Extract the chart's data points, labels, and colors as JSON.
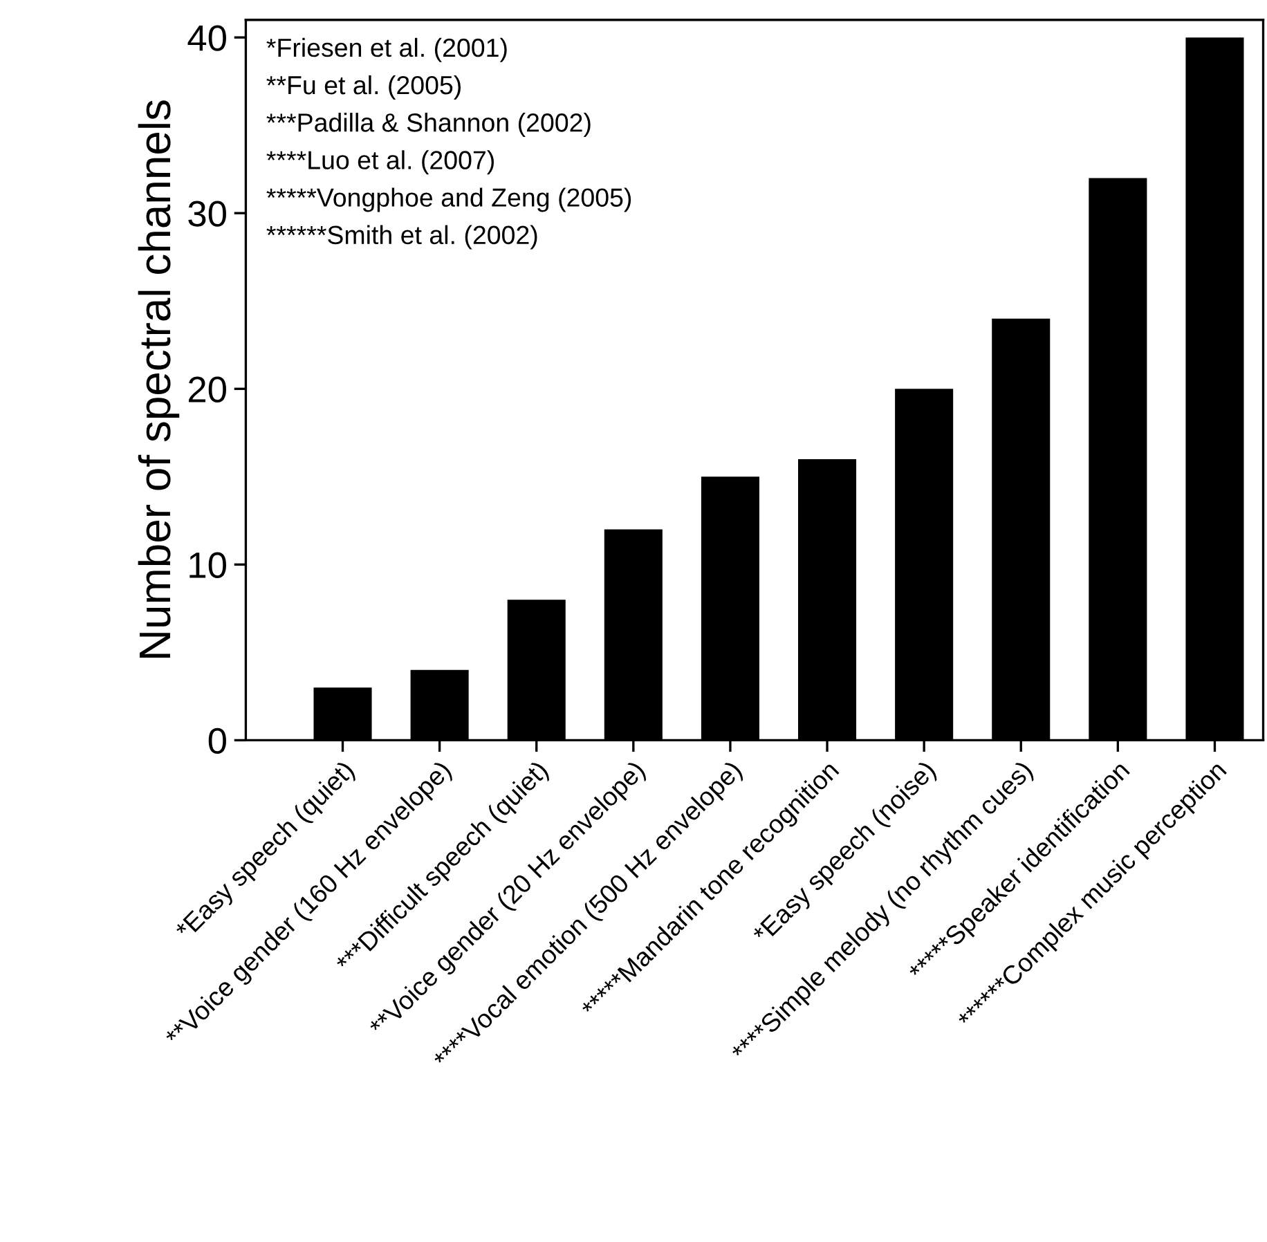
{
  "chart_data": {
    "type": "bar",
    "ylabel": "Number of spectral channels",
    "categories": [
      "*Easy speech (quiet)",
      "**Voice gender (160 Hz envelope)",
      "***Difficult speech (quiet)",
      "**Voice gender (20 Hz envelope)",
      "****Vocal emotion (500 Hz envelope)",
      "*****Mandarin tone recognition",
      "*Easy speech (noise)",
      "****Simple melody (no rhythm cues)",
      "*****Speaker identification",
      "******Complex music perception"
    ],
    "values": [
      3,
      4,
      8,
      12,
      15,
      16,
      20,
      24,
      32,
      40
    ],
    "color": "#000000",
    "ylim": [
      0,
      41
    ],
    "yticks": [
      0,
      10,
      20,
      30,
      40
    ],
    "grid": false,
    "legend": false,
    "annotations": [
      "*Friesen et al. (2001)",
      "**Fu et al. (2005)",
      "***Padilla & Shannon (2002)",
      "****Luo et al. (2007)",
      "*****Vongphoe and Zeng (2005)",
      "******Smith et al. (2002)"
    ]
  }
}
